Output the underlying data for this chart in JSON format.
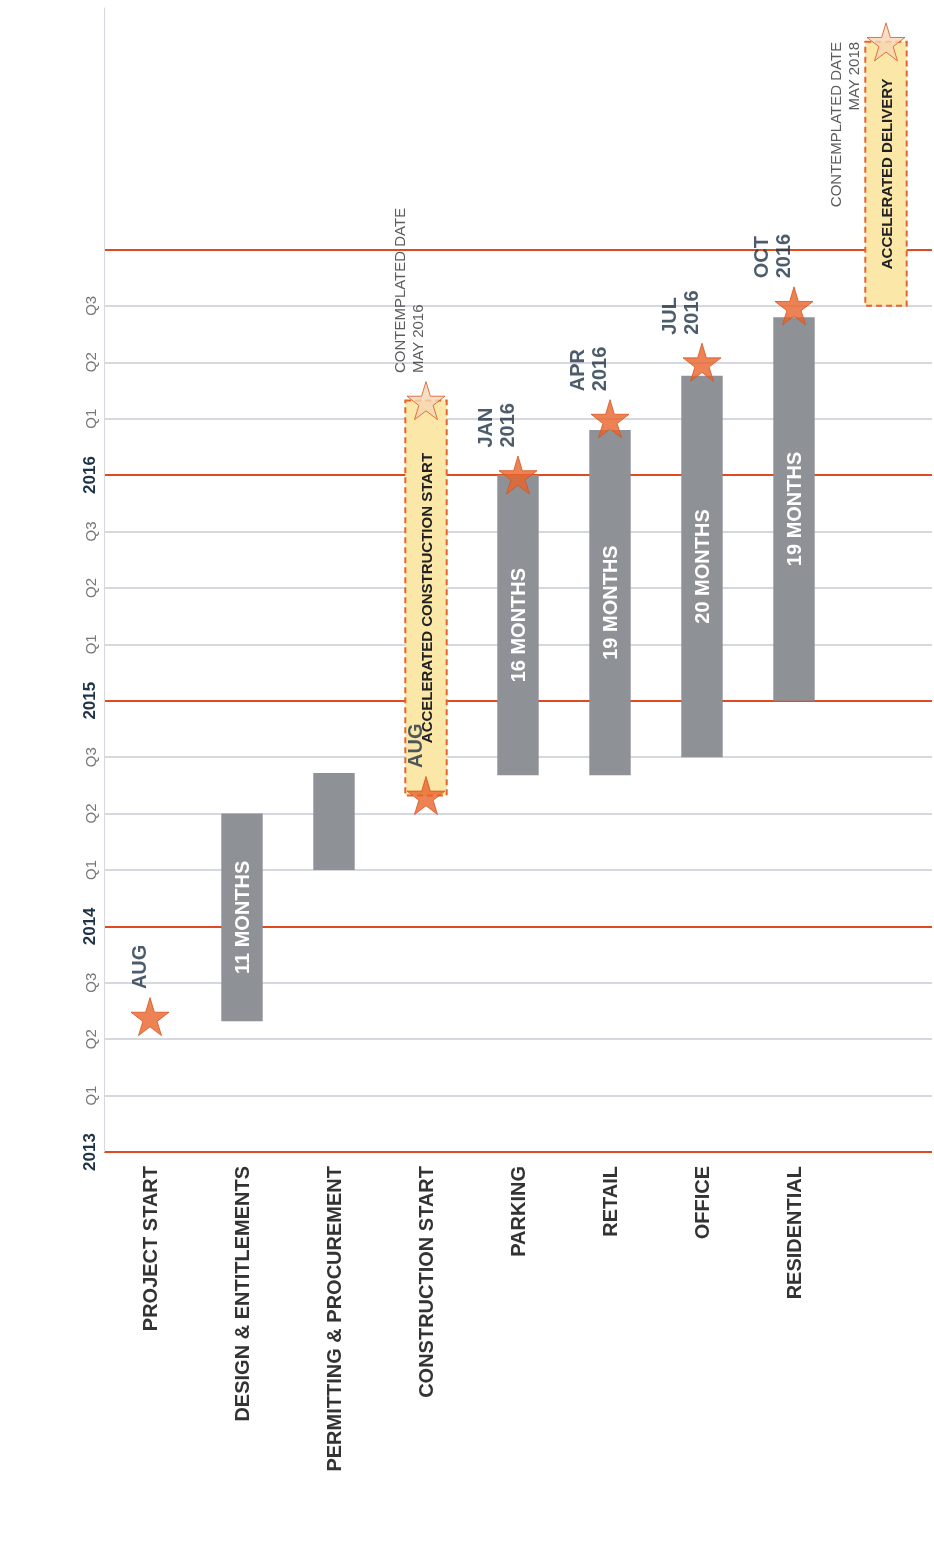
{
  "chart_data": {
    "type": "bar",
    "categories": [
      "PROJECT START",
      "DESIGN & ENTITLEMENTS",
      "PERMITTING & PROCUREMENT",
      "CONSTRUCTION START",
      "PARKING",
      "RETAIL",
      "OFFICE",
      "RESIDENTIAL",
      null
    ],
    "ylim": [
      2013,
      2018.07
    ],
    "yticks": [
      {
        "value": 2013,
        "label": "2013"
      },
      {
        "value": 2013.25,
        "label": "Q1"
      },
      {
        "value": 2013.5,
        "label": "Q2"
      },
      {
        "value": 2013.75,
        "label": "Q3"
      },
      {
        "value": 2014,
        "label": "2014"
      },
      {
        "value": 2014.25,
        "label": "Q1"
      },
      {
        "value": 2014.5,
        "label": "Q2"
      },
      {
        "value": 2014.75,
        "label": "Q3"
      },
      {
        "value": 2015,
        "label": "2015"
      },
      {
        "value": 2015.25,
        "label": "Q1"
      },
      {
        "value": 2015.5,
        "label": "Q2"
      },
      {
        "value": 2015.75,
        "label": "Q3"
      },
      {
        "value": 2016,
        "label": "2016"
      },
      {
        "value": 2016.25,
        "label": "Q1"
      },
      {
        "value": 2016.5,
        "label": "Q2"
      },
      {
        "value": 2016.75,
        "label": "Q3"
      },
      {
        "value": 2017,
        "label": null
      }
    ],
    "grid": "y",
    "marker": "star",
    "annotations": [
      "11 MONTHS",
      "16 MONTHS",
      "19 MONTHS",
      "20 MONTHS",
      "19 MONTHS"
    ],
    "series": [
      {
        "color": "#8e9195",
        "values": [
          null,
          0.92,
          null,
          null,
          1.33,
          1.53,
          1.69,
          1.7,
          null
        ],
        "base": [
          null,
          2013.58,
          null,
          null,
          2014.67,
          2014.67,
          2014.75,
          2015,
          null
        ]
      },
      {
        "color": "#8e9195",
        "values": [
          null,
          null,
          0.43,
          null,
          null,
          null,
          null,
          null,
          null
        ],
        "base": [
          null,
          null,
          2014.25,
          null,
          null,
          null,
          null,
          null,
          null
        ]
      },
      {
        "color": "#fbe7a8",
        "line_style": "dashed",
        "values": [
          null,
          null,
          null,
          1.75,
          null,
          null,
          null,
          null,
          1.17
        ],
        "base": [
          null,
          null,
          null,
          2014.58,
          null,
          null,
          null,
          null,
          2016.75
        ],
        "value_labels": [
          null,
          null,
          null,
          "ACCELERATED CONSTRUCTION START",
          null,
          null,
          null,
          null,
          "ACCELERATED DELIVERY"
        ]
      },
      {
        "type": "scatter",
        "color": "#e8632b",
        "values": [
          2013.6,
          null,
          null,
          2014.58,
          2016,
          2016.25,
          2016.5,
          2016.75,
          null
        ],
        "value_labels": [
          "AUG",
          null,
          null,
          "AUG",
          "JAN\n2016",
          "APR\n2016",
          "JUL\n2016",
          "OCT\n2016",
          null
        ]
      },
      {
        "type": "scatter",
        "color": "#f6d7b4",
        "values": [
          null,
          null,
          null,
          2016.33,
          null,
          null,
          null,
          null,
          2017.92
        ],
        "value_labels": [
          null,
          null,
          null,
          "CONTEMPLATED DATE\nMAY 2016",
          null,
          null,
          null,
          null,
          "CONTEMPLATED DATE\nMAY 2018"
        ]
      }
    ]
  }
}
